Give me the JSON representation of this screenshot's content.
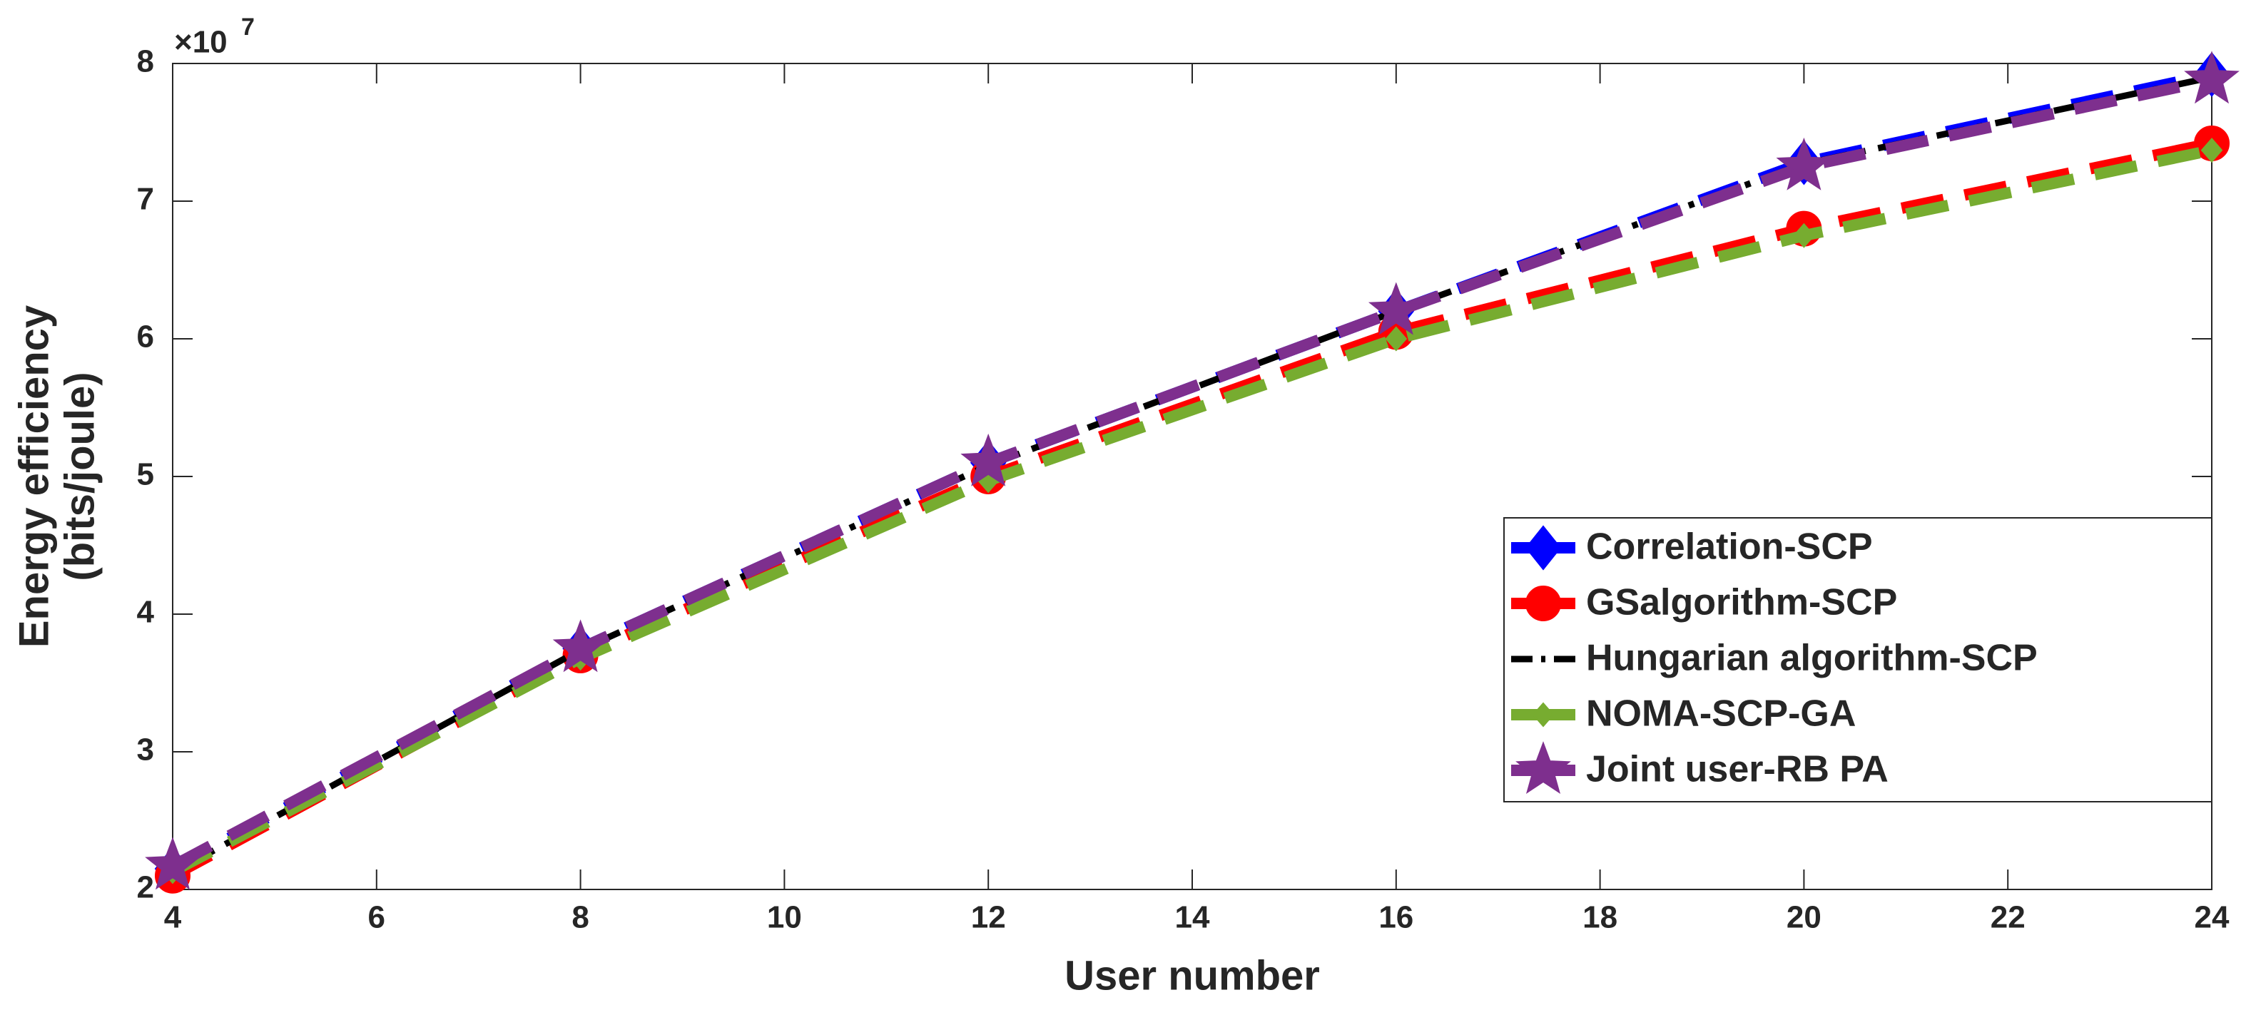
{
  "chart_data": {
    "type": "line",
    "xlabel": "User number",
    "ylabel": [
      "Energy efficiency",
      "(bits/joule)"
    ],
    "y_multiplier": "×10",
    "y_multiplier_exponent": "7",
    "x": [
      4,
      8,
      12,
      16,
      20,
      24
    ],
    "xlim": [
      4,
      24
    ],
    "xticks": [
      4,
      6,
      8,
      10,
      12,
      14,
      16,
      18,
      20,
      22,
      24
    ],
    "ylim": [
      2,
      8
    ],
    "yticks": [
      2,
      3,
      4,
      5,
      6,
      7,
      8
    ],
    "grid": false,
    "legend": "lower right",
    "series": [
      {
        "name": "Correlation-SCP",
        "color": "#0000ff",
        "marker": "diamond",
        "dash": "dashed",
        "values": [
          2.15,
          3.75,
          5.1,
          6.2,
          7.28,
          7.92
        ]
      },
      {
        "name": "GSalgorithm-SCP",
        "color": "#ff0000",
        "marker": "circle",
        "dash": "dashed",
        "values": [
          2.1,
          3.7,
          5.0,
          6.05,
          6.8,
          7.42
        ]
      },
      {
        "name": "Hungarian algorithm-SCP",
        "color": "#000000",
        "marker": "none",
        "dash": "dashdot",
        "values": [
          2.12,
          3.74,
          5.08,
          6.2,
          7.27,
          7.9
        ]
      },
      {
        "name": "NOMA-SCP-GA",
        "color": "#77ac30",
        "marker": "smalldiamond",
        "dash": "dashed",
        "values": [
          2.13,
          3.68,
          4.97,
          6.0,
          6.75,
          7.37
        ]
      },
      {
        "name": "Joint user-RB PA",
        "color": "#7e2f8e",
        "marker": "star",
        "dash": "dashed",
        "values": [
          2.17,
          3.75,
          5.1,
          6.2,
          7.25,
          7.88
        ]
      }
    ]
  }
}
